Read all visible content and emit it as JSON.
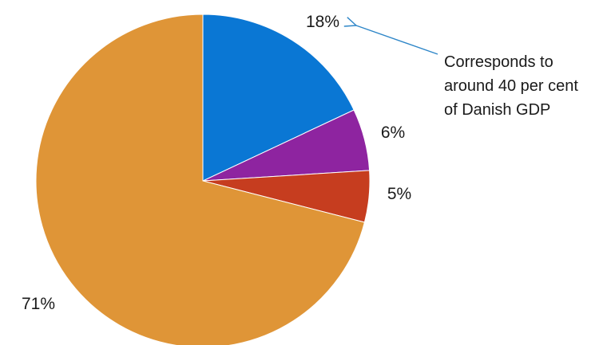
{
  "chart_data": {
    "type": "pie",
    "slices": [
      {
        "value": 18,
        "label": "18%",
        "color": "#0a77d4"
      },
      {
        "value": 6,
        "label": "6%",
        "color": "#8e24a0"
      },
      {
        "value": 5,
        "label": "5%",
        "color": "#c63d1f"
      },
      {
        "value": 71,
        "label": "71%",
        "color": "#df9537"
      }
    ],
    "start_angle_deg": 0,
    "direction": "clockwise",
    "annotation": {
      "lines": [
        "Corresponds to",
        "around 40 per cent",
        "of Danish GDP"
      ],
      "target_slice": 0,
      "color": "#2e86c8"
    }
  }
}
